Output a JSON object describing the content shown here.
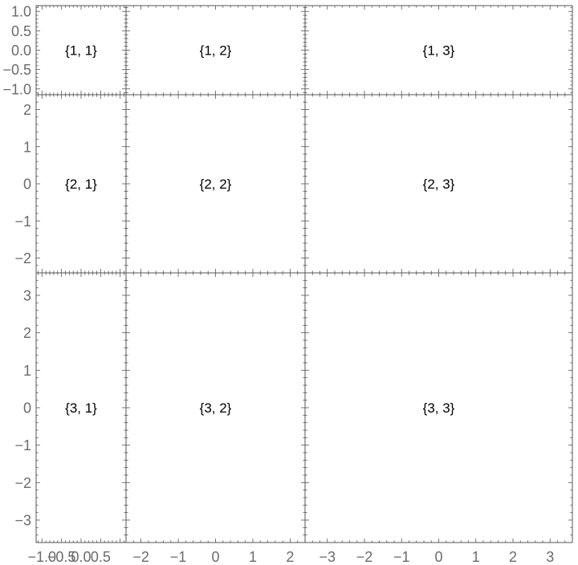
{
  "chart_data": {
    "type": "grid",
    "rows": 3,
    "cols": 3,
    "cells": [
      [
        "{1, 1}",
        "{1, 2}",
        "{1, 3}"
      ],
      [
        "{2, 1}",
        "{2, 2}",
        "{2, 3}"
      ],
      [
        "{3, 1}",
        "{3, 2}",
        "{3, 3}"
      ]
    ],
    "row_yranges": [
      [
        -1.15,
        1.15
      ],
      [
        -2.4,
        2.4
      ],
      [
        -3.6,
        3.6
      ]
    ],
    "col_xranges": [
      [
        -1.15,
        1.15
      ],
      [
        -2.4,
        2.4
      ],
      [
        -3.6,
        3.6
      ]
    ],
    "y_tick_labels": [
      [
        {
          "value": 1.0,
          "label": "1.0"
        },
        {
          "value": 0.5,
          "label": "0.5"
        },
        {
          "value": 0.0,
          "label": "0.0"
        },
        {
          "value": -0.5,
          "label": "−0.5"
        },
        {
          "value": -1.0,
          "label": "−1.0"
        }
      ],
      [
        {
          "value": 2,
          "label": "2"
        },
        {
          "value": 1,
          "label": "1"
        },
        {
          "value": 0,
          "label": "0"
        },
        {
          "value": -1,
          "label": "−1"
        },
        {
          "value": -2,
          "label": "−2"
        }
      ],
      [
        {
          "value": 3,
          "label": "3"
        },
        {
          "value": 2,
          "label": "2"
        },
        {
          "value": 1,
          "label": "1"
        },
        {
          "value": 0,
          "label": "0"
        },
        {
          "value": -1,
          "label": "−1"
        },
        {
          "value": -2,
          "label": "−2"
        },
        {
          "value": -3,
          "label": "−3"
        }
      ]
    ],
    "x_tick_labels": [
      [
        {
          "value": -1.0,
          "label": "−1.0"
        },
        {
          "value": -0.5,
          "label": "−0.5"
        },
        {
          "value": 0.0,
          "label": "0.0"
        },
        {
          "value": 0.5,
          "label": "0.5"
        }
      ],
      [
        {
          "value": -2,
          "label": "−2"
        },
        {
          "value": -1,
          "label": "−1"
        },
        {
          "value": 0,
          "label": "0"
        },
        {
          "value": 1,
          "label": "1"
        },
        {
          "value": 2,
          "label": "2"
        }
      ],
      [
        {
          "value": -3,
          "label": "−3"
        },
        {
          "value": -2,
          "label": "−2"
        },
        {
          "value": -1,
          "label": "−1"
        },
        {
          "value": 0,
          "label": "0"
        },
        {
          "value": 1,
          "label": "1"
        },
        {
          "value": 2,
          "label": "2"
        },
        {
          "value": 3,
          "label": "3"
        }
      ]
    ],
    "minor_tick_steps": [
      0.1,
      0.2,
      0.2
    ],
    "grid": false,
    "colors": {
      "frame": "#555555",
      "tick_label": "#6b6b6b",
      "cell_label": "#000000"
    }
  }
}
